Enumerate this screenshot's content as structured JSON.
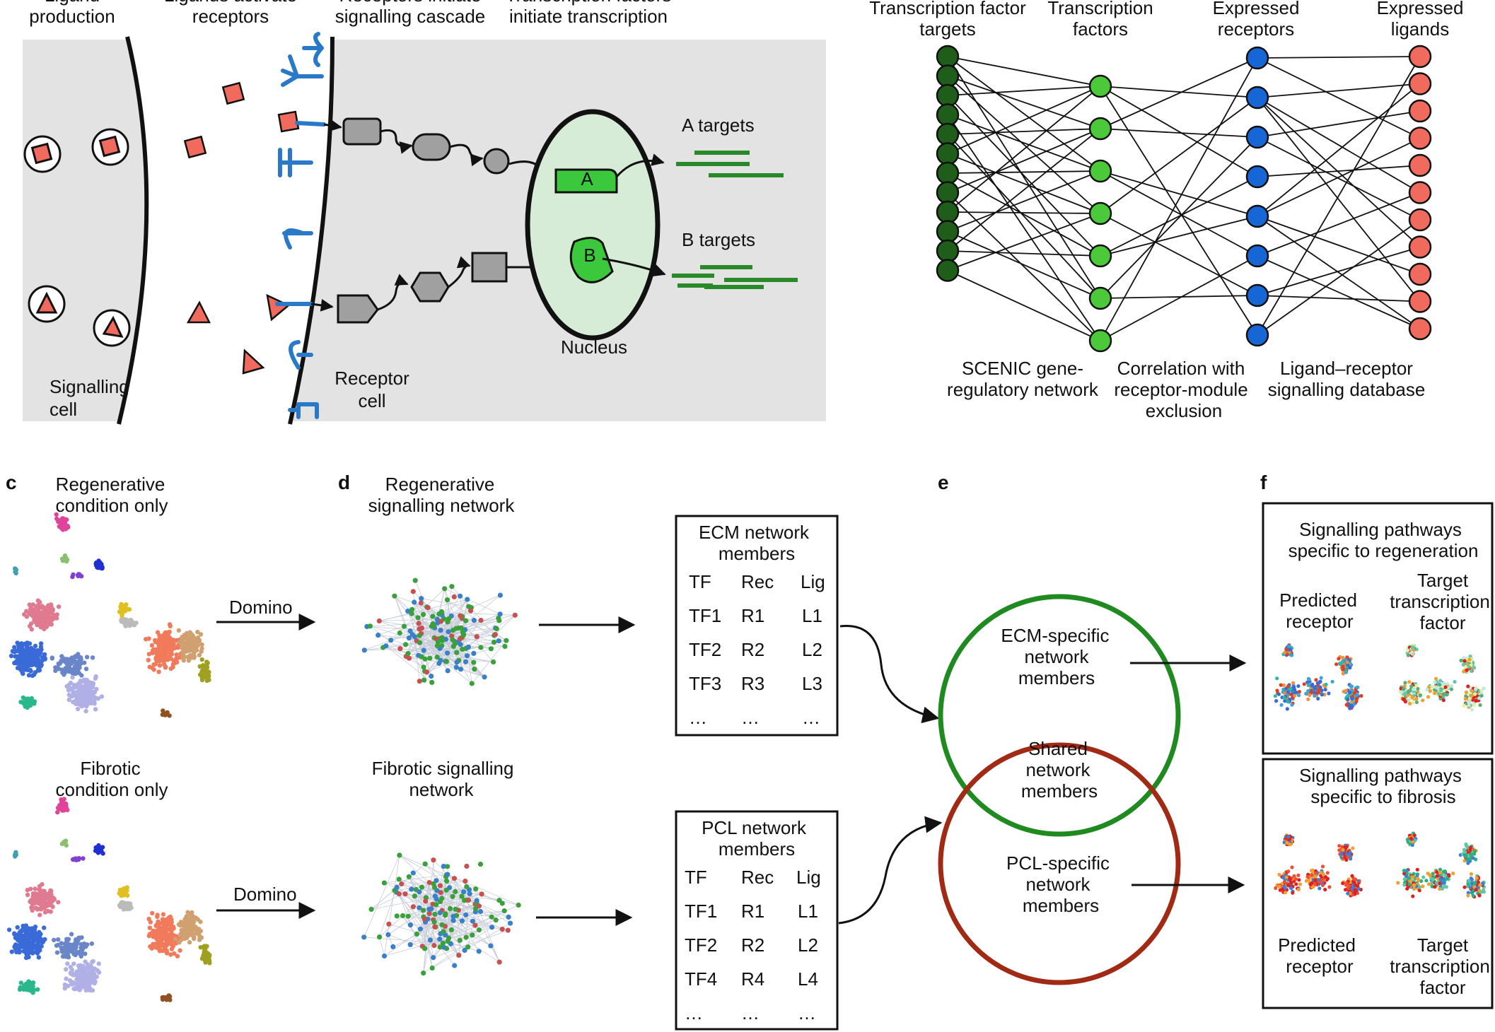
{
  "panel_a": {
    "headers": [
      [
        "Ligand",
        "production"
      ],
      [
        "Ligands activate",
        "receptors"
      ],
      [
        "Receptors initiate",
        "signalling cascade"
      ],
      [
        "Transcription factors",
        "initiate transcription"
      ]
    ],
    "signalling_cell": [
      "Signalling",
      "cell"
    ],
    "receptor_cell": [
      "Receptor",
      "cell"
    ],
    "nucleus": "Nucleus",
    "tf_a": "A",
    "tf_b": "B",
    "a_targets": "A targets",
    "b_targets": "B targets"
  },
  "panel_b": {
    "columns": [
      [
        "Transcription factor",
        "targets"
      ],
      [
        "Transcription",
        "factors"
      ],
      [
        "Expressed",
        "receptors"
      ],
      [
        "Expressed",
        "ligands"
      ]
    ],
    "captions": [
      [
        "SCENIC gene-",
        "regulatory network"
      ],
      [
        "Correlation with",
        "receptor-module",
        "exclusion"
      ],
      [
        "Ligand–receptor",
        "signalling database"
      ]
    ],
    "colors": {
      "tf_targets": "#1f5e1a",
      "tfs": "#4cc93a",
      "receptors": "#1766d6",
      "ligands": "#f06a5e"
    }
  },
  "panel_c": {
    "label": "c",
    "top": [
      "Regenerative",
      "condition only"
    ],
    "bottom": [
      "Fibrotic",
      "condition only"
    ],
    "arrow_label": "Domino"
  },
  "panel_d": {
    "label": "d",
    "top": [
      "Regenerative",
      "signalling network"
    ],
    "bottom": [
      "Fibrotic signalling",
      "network"
    ]
  },
  "ecm_box": {
    "title": [
      "ECM network",
      "members"
    ],
    "header": [
      "TF",
      "Rec",
      "Lig"
    ],
    "rows": [
      [
        "TF1",
        "R1",
        "L1"
      ],
      [
        "TF2",
        "R2",
        "L2"
      ],
      [
        "TF3",
        "R3",
        "L3"
      ],
      [
        "…",
        "…",
        "…"
      ]
    ]
  },
  "pcl_box": {
    "title": [
      "PCL network",
      "members"
    ],
    "header": [
      "TF",
      "Rec",
      "Lig"
    ],
    "rows": [
      [
        "TF1",
        "R1",
        "L1"
      ],
      [
        "TF2",
        "R2",
        "L2"
      ],
      [
        "TF4",
        "R4",
        "L4"
      ],
      [
        "…",
        "…",
        "…"
      ]
    ]
  },
  "panel_e": {
    "label": "e",
    "ecm_specific": [
      "ECM-specific",
      "network",
      "members"
    ],
    "shared": [
      "Shared",
      "network",
      "members"
    ],
    "pcl_specific": [
      "PCL-specific",
      "network",
      "members"
    ],
    "colors": {
      "ecm_circle": "#1f8a1f",
      "pcl_circle": "#a02a14"
    }
  },
  "panel_f": {
    "label": "f",
    "top_title": [
      "Signalling pathways",
      "specific to regeneration"
    ],
    "top_left": [
      "Predicted",
      "receptor"
    ],
    "top_right": [
      "Target",
      "transcription",
      "factor"
    ],
    "bottom_title": [
      "Signalling pathways",
      "specific to fibrosis"
    ],
    "bottom_left": [
      "Predicted",
      "receptor"
    ],
    "bottom_right": [
      "Target",
      "transcription",
      "factor"
    ]
  }
}
